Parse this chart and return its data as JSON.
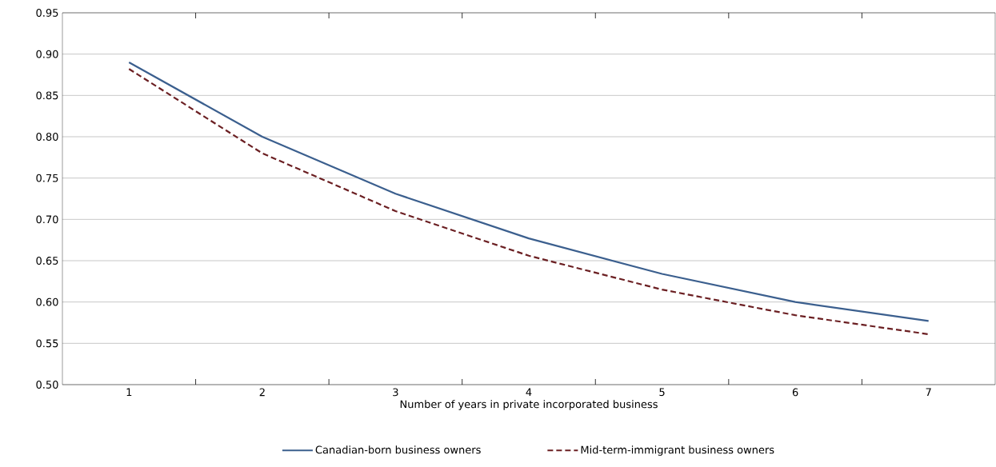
{
  "chart_data": {
    "type": "line",
    "xlabel": "Number of years in private incorporated business",
    "categories": [
      "1",
      "2",
      "3",
      "4",
      "5",
      "6",
      "7"
    ],
    "series": [
      {
        "name": "Canadian-born business owners",
        "color": "#3b5f8e",
        "line_style": "solid",
        "values": [
          0.89,
          0.8,
          0.731,
          0.677,
          0.634,
          0.6,
          0.577
        ]
      },
      {
        "name": "Mid-term-immigrant business owners",
        "color": "#6b1f22",
        "line_style": "dashed",
        "values": [
          0.882,
          0.78,
          0.71,
          0.656,
          0.615,
          0.584,
          0.561
        ]
      }
    ],
    "ylim": [
      0.5,
      0.95
    ],
    "yticks": [
      {
        "value": 0.5,
        "label": "0.50"
      },
      {
        "value": 0.55,
        "label": "0.55"
      },
      {
        "value": 0.6,
        "label": "0.60"
      },
      {
        "value": 0.65,
        "label": "0.65"
      },
      {
        "value": 0.7,
        "label": "0.70"
      },
      {
        "value": 0.75,
        "label": "0.75"
      },
      {
        "value": 0.8,
        "label": "0.80"
      },
      {
        "value": 0.85,
        "label": "0.85"
      },
      {
        "value": 0.9,
        "label": "0.90"
      },
      {
        "value": 0.95,
        "label": "0.95"
      }
    ],
    "grid": "y",
    "legend": "bottom",
    "marker": "none"
  }
}
